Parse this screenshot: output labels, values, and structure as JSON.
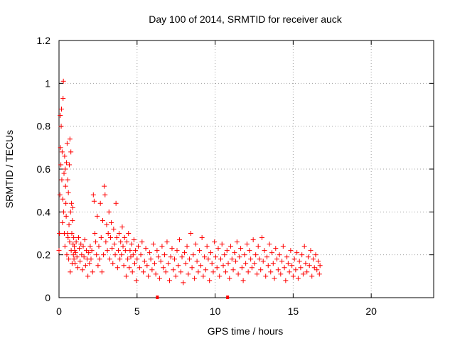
{
  "chart_data": {
    "type": "scatter",
    "title": "Day 100 of 2014, SRMTID for receiver auck",
    "xlabel": "GPS time / hours",
    "ylabel": "SRMTID / TECUs",
    "xlim": [
      0,
      24
    ],
    "ylim": [
      0,
      1.2
    ],
    "grid": true,
    "marker": "+",
    "marker_color": "#ff0000",
    "x_ticks": [
      {
        "value": 0,
        "label": "0"
      },
      {
        "value": 5,
        "label": "5"
      },
      {
        "value": 10,
        "label": "10"
      },
      {
        "value": 15,
        "label": "15"
      },
      {
        "value": 20,
        "label": "20"
      }
    ],
    "y_ticks": [
      {
        "value": 0,
        "label": "0"
      },
      {
        "value": 0.2,
        "label": "0.2"
      },
      {
        "value": 0.4,
        "label": "0.4"
      },
      {
        "value": 0.6,
        "label": "0.6"
      },
      {
        "value": 0.8,
        "label": "0.8"
      },
      {
        "value": 1.0,
        "label": "1"
      },
      {
        "value": 1.2,
        "label": "1.2"
      }
    ],
    "series": [
      {
        "name": "SRMTID",
        "x": [
          0.0,
          0.03,
          0.06,
          0.08,
          0.1,
          0.12,
          0.14,
          0.16,
          0.18,
          0.2,
          0.22,
          0.24,
          0.26,
          0.28,
          0.3,
          0.32,
          0.34,
          0.36,
          0.38,
          0.4,
          0.42,
          0.44,
          0.46,
          0.48,
          0.5,
          0.52,
          0.54,
          0.56,
          0.58,
          0.6,
          0.62,
          0.64,
          0.66,
          0.68,
          0.7,
          0.72,
          0.74,
          0.76,
          0.78,
          0.8,
          0.82,
          0.84,
          0.86,
          0.88,
          0.9,
          0.92,
          0.94,
          0.96,
          0.98,
          1.0,
          1.03,
          1.06,
          1.1,
          1.15,
          1.2,
          1.25,
          1.3,
          1.35,
          1.4,
          1.45,
          1.5,
          1.55,
          1.6,
          1.65,
          1.7,
          1.75,
          1.8,
          1.85,
          1.9,
          1.95,
          2.0,
          2.05,
          2.1,
          2.15,
          2.2,
          2.25,
          2.3,
          2.35,
          2.4,
          2.45,
          2.5,
          2.55,
          2.6,
          2.65,
          2.7,
          2.75,
          2.8,
          2.85,
          2.9,
          2.95,
          3.0,
          3.05,
          3.1,
          3.15,
          3.2,
          3.25,
          3.3,
          3.35,
          3.4,
          3.45,
          3.5,
          3.55,
          3.6,
          3.65,
          3.7,
          3.75,
          3.8,
          3.85,
          3.9,
          3.95,
          4.0,
          4.05,
          4.1,
          4.15,
          4.2,
          4.25,
          4.3,
          4.35,
          4.4,
          4.45,
          4.5,
          4.55,
          4.6,
          4.65,
          4.7,
          4.75,
          4.8,
          4.85,
          4.9,
          4.95,
          5.0,
          5.08,
          5.16,
          5.24,
          5.32,
          5.4,
          5.48,
          5.56,
          5.64,
          5.72,
          5.8,
          5.88,
          5.96,
          6.04,
          6.12,
          6.2,
          6.28,
          6.36,
          6.44,
          6.52,
          6.6,
          6.68,
          6.76,
          6.84,
          6.92,
          7.0,
          7.08,
          7.16,
          7.24,
          7.32,
          7.4,
          7.48,
          7.56,
          7.64,
          7.72,
          7.8,
          7.88,
          7.96,
          8.04,
          8.12,
          8.2,
          8.28,
          8.36,
          8.44,
          8.52,
          8.6,
          8.68,
          8.76,
          8.84,
          8.92,
          9.0,
          9.08,
          9.16,
          9.24,
          9.32,
          9.4,
          9.48,
          9.56,
          9.64,
          9.72,
          9.8,
          9.88,
          9.96,
          10.04,
          10.12,
          10.2,
          10.28,
          10.36,
          10.44,
          10.52,
          10.6,
          10.68,
          10.76,
          10.84,
          10.92,
          11.0,
          11.08,
          11.16,
          11.24,
          11.32,
          11.4,
          11.48,
          11.56,
          11.64,
          11.72,
          11.8,
          11.88,
          11.96,
          12.04,
          12.12,
          12.2,
          12.28,
          12.36,
          12.44,
          12.52,
          12.6,
          12.68,
          12.76,
          12.84,
          12.92,
          13.0,
          13.08,
          13.16,
          13.24,
          13.32,
          13.4,
          13.48,
          13.56,
          13.64,
          13.72,
          13.8,
          13.88,
          13.96,
          14.04,
          14.12,
          14.2,
          14.28,
          14.36,
          14.44,
          14.52,
          14.6,
          14.68,
          14.76,
          14.84,
          14.92,
          15.0,
          15.08,
          15.16,
          15.24,
          15.32,
          15.4,
          15.48,
          15.56,
          15.64,
          15.72,
          15.8,
          15.88,
          15.96,
          16.04,
          16.12,
          16.2,
          16.28,
          16.36,
          16.44,
          16.52,
          16.6,
          16.68,
          16.72
        ],
        "y": [
          0.22,
          0.3,
          0.48,
          0.85,
          0.7,
          0.62,
          0.8,
          0.88,
          0.55,
          0.68,
          0.35,
          0.46,
          0.93,
          1.01,
          0.4,
          0.58,
          0.3,
          0.66,
          0.24,
          0.6,
          0.52,
          0.44,
          0.38,
          0.63,
          0.2,
          0.72,
          0.3,
          0.55,
          0.28,
          0.49,
          0.18,
          0.34,
          0.62,
          0.26,
          0.74,
          0.12,
          0.4,
          0.68,
          0.22,
          0.44,
          0.3,
          0.16,
          0.36,
          0.42,
          0.25,
          0.2,
          0.28,
          0.18,
          0.24,
          0.22,
          0.16,
          0.21,
          0.26,
          0.19,
          0.14,
          0.28,
          0.23,
          0.17,
          0.25,
          0.2,
          0.13,
          0.24,
          0.19,
          0.27,
          0.15,
          0.22,
          0.18,
          0.1,
          0.21,
          0.16,
          0.24,
          0.18,
          0.22,
          0.12,
          0.48,
          0.45,
          0.3,
          0.26,
          0.2,
          0.38,
          0.15,
          0.24,
          0.18,
          0.44,
          0.28,
          0.12,
          0.36,
          0.2,
          0.52,
          0.48,
          0.26,
          0.34,
          0.22,
          0.3,
          0.4,
          0.18,
          0.28,
          0.35,
          0.23,
          0.16,
          0.32,
          0.25,
          0.2,
          0.44,
          0.28,
          0.14,
          0.22,
          0.3,
          0.18,
          0.26,
          0.2,
          0.33,
          0.24,
          0.15,
          0.28,
          0.22,
          0.1,
          0.26,
          0.18,
          0.3,
          0.14,
          0.22,
          0.19,
          0.25,
          0.12,
          0.2,
          0.27,
          0.16,
          0.22,
          0.08,
          0.18,
          0.24,
          0.14,
          0.2,
          0.26,
          0.12,
          0.17,
          0.23,
          0.15,
          0.1,
          0.21,
          0.18,
          0.13,
          0.25,
          0.16,
          0.11,
          0.22,
          0.19,
          0.09,
          0.17,
          0.24,
          0.14,
          0.2,
          0.12,
          0.26,
          0.16,
          0.08,
          0.19,
          0.23,
          0.13,
          0.18,
          0.1,
          0.22,
          0.15,
          0.27,
          0.12,
          0.19,
          0.07,
          0.21,
          0.16,
          0.24,
          0.11,
          0.18,
          0.3,
          0.14,
          0.2,
          0.09,
          0.25,
          0.17,
          0.12,
          0.22,
          0.15,
          0.28,
          0.1,
          0.19,
          0.13,
          0.24,
          0.18,
          0.08,
          0.21,
          0.16,
          0.12,
          0.26,
          0.19,
          0.14,
          0.23,
          0.1,
          0.18,
          0.25,
          0.15,
          0.2,
          0.12,
          0.22,
          0.16,
          0.09,
          0.24,
          0.18,
          0.13,
          0.21,
          0.17,
          0.26,
          0.11,
          0.19,
          0.23,
          0.14,
          0.08,
          0.2,
          0.16,
          0.25,
          0.12,
          0.22,
          0.18,
          0.14,
          0.27,
          0.16,
          0.2,
          0.11,
          0.24,
          0.18,
          0.13,
          0.28,
          0.17,
          0.22,
          0.1,
          0.19,
          0.15,
          0.25,
          0.12,
          0.21,
          0.16,
          0.09,
          0.23,
          0.18,
          0.13,
          0.2,
          0.11,
          0.17,
          0.24,
          0.14,
          0.08,
          0.19,
          0.16,
          0.12,
          0.22,
          0.15,
          0.1,
          0.18,
          0.13,
          0.21,
          0.09,
          0.17,
          0.14,
          0.2,
          0.11,
          0.24,
          0.16,
          0.12,
          0.19,
          0.15,
          0.22,
          0.1,
          0.18,
          0.14,
          0.2,
          0.13,
          0.17,
          0.11,
          0.15
        ]
      }
    ],
    "x_axis_markers": [
      6.3,
      10.8
    ]
  }
}
